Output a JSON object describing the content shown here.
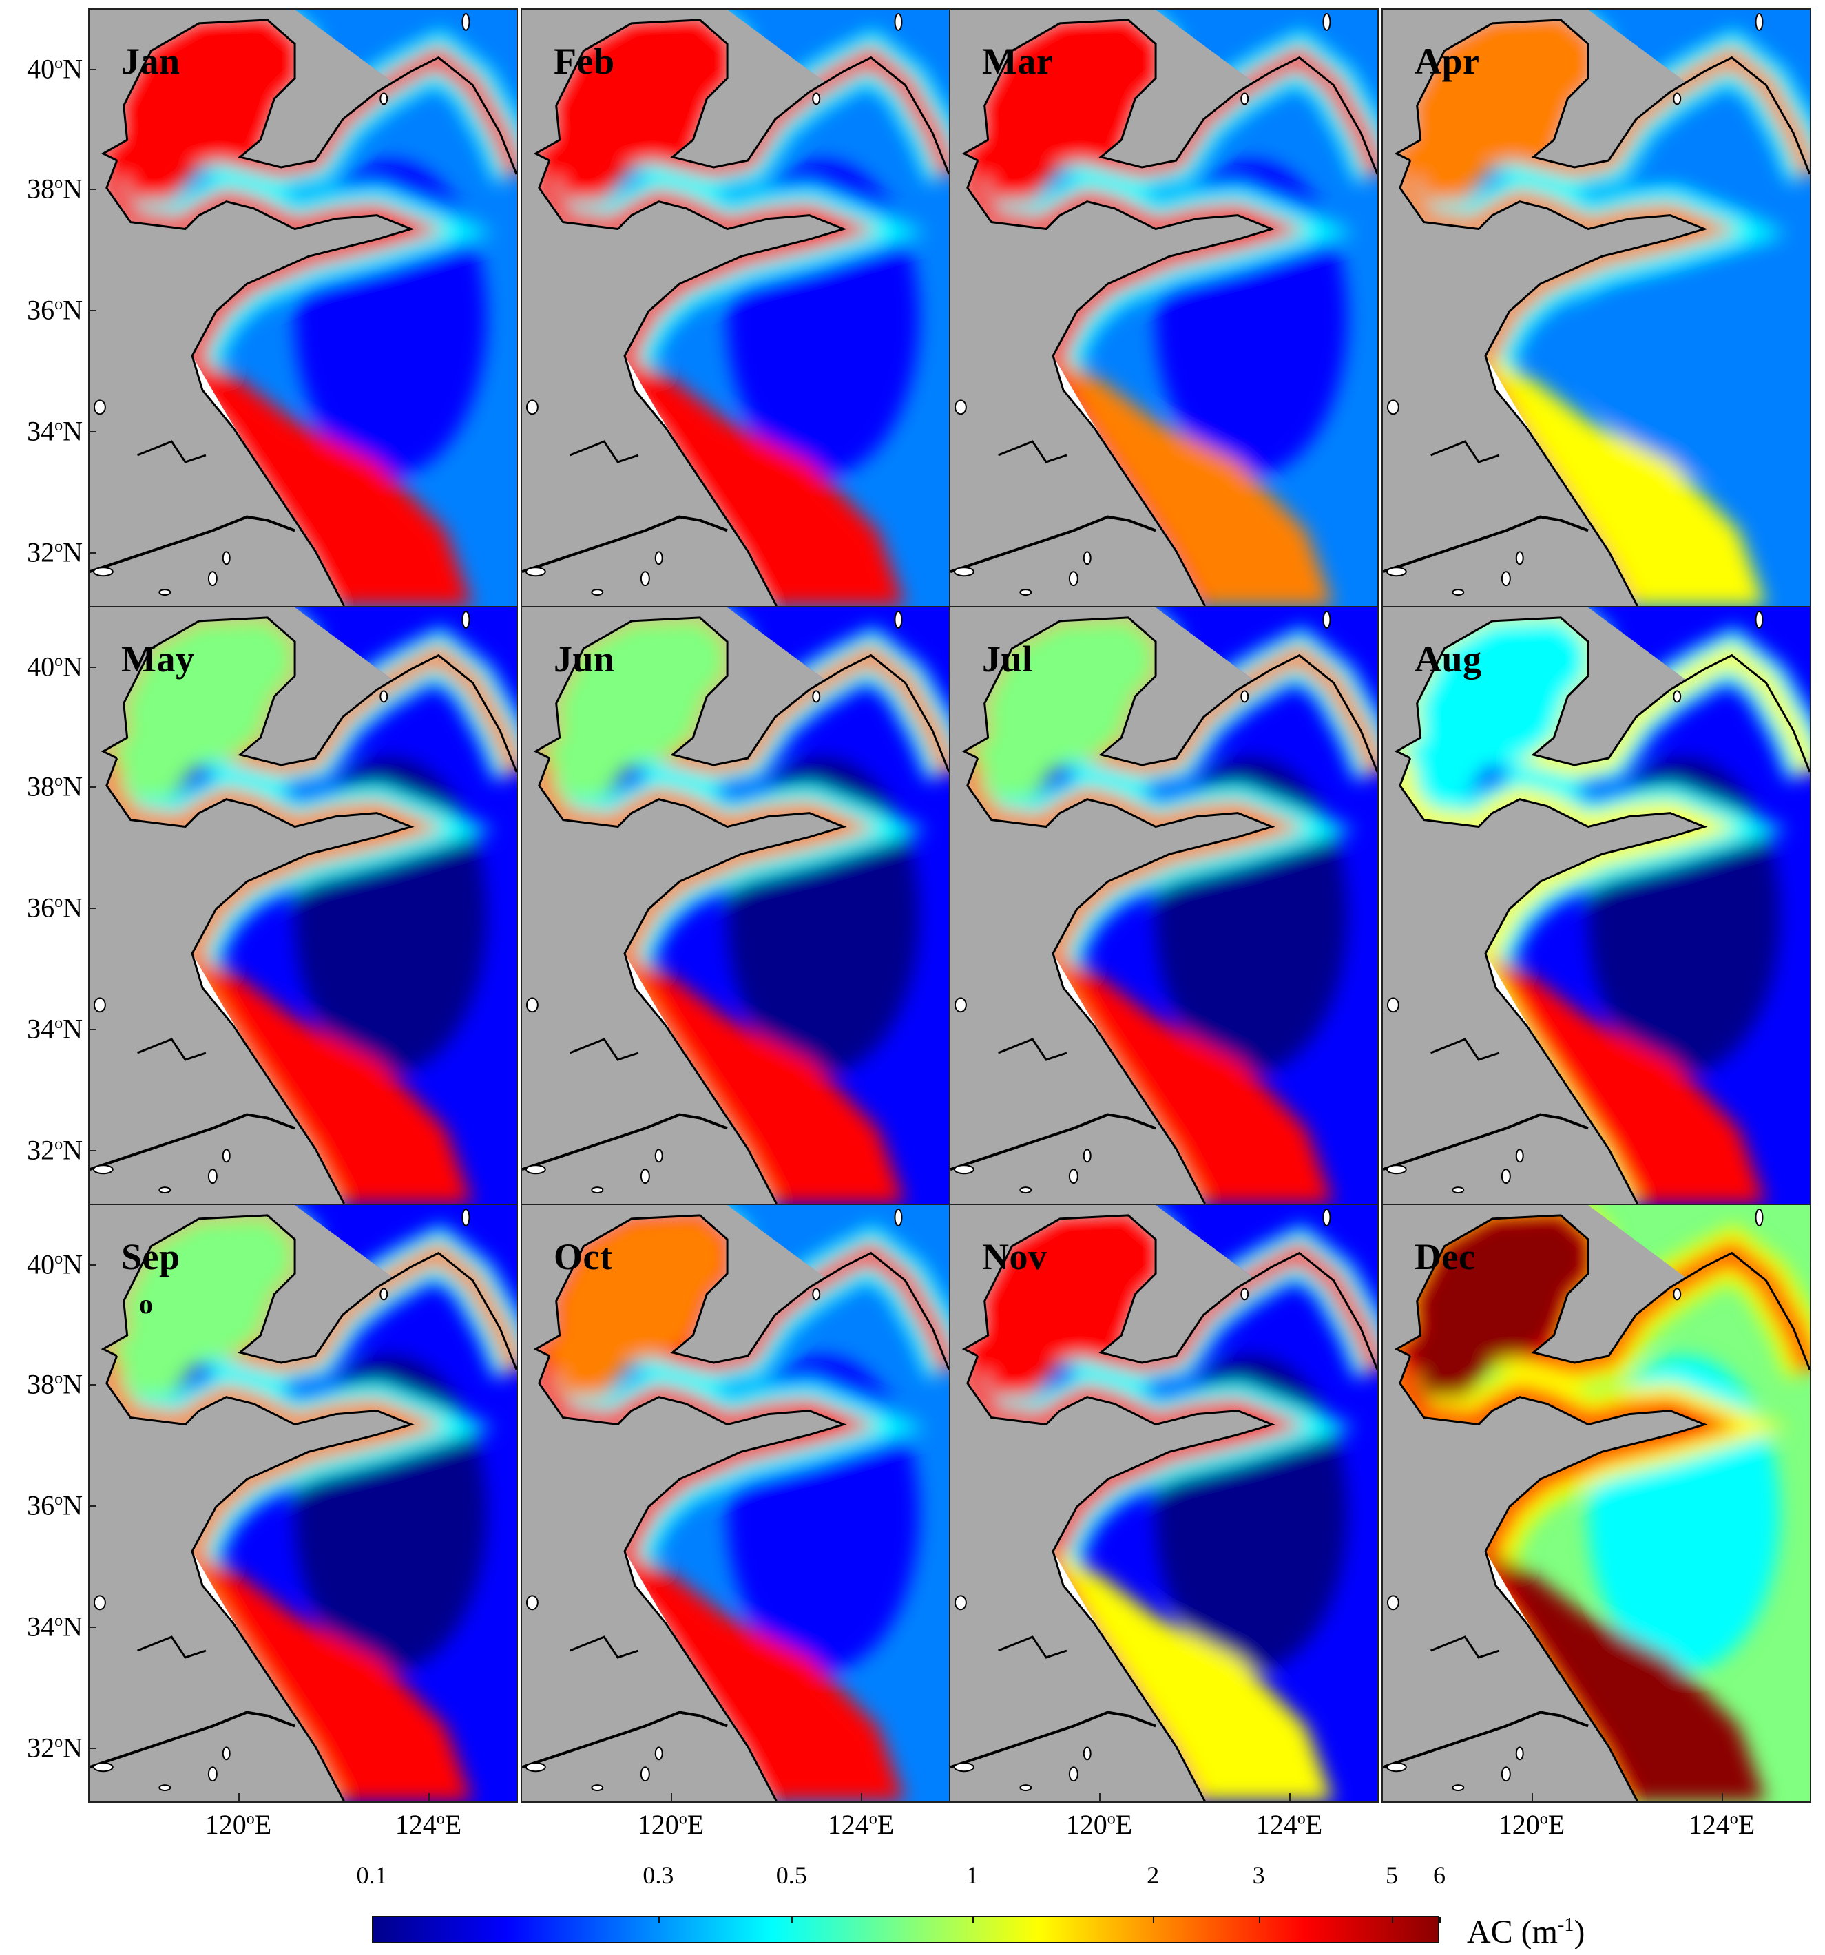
{
  "panels": [
    {
      "month": "Jan",
      "profile": "winter_high"
    },
    {
      "month": "Feb",
      "profile": "winter_high"
    },
    {
      "month": "Mar",
      "profile": "spring"
    },
    {
      "month": "Apr",
      "profile": "spring_low"
    },
    {
      "month": "May",
      "profile": "summer"
    },
    {
      "month": "Jun",
      "profile": "summer"
    },
    {
      "month": "Jul",
      "profile": "summer"
    },
    {
      "month": "Aug",
      "profile": "summer_low"
    },
    {
      "month": "Sep",
      "profile": "summer"
    },
    {
      "month": "Oct",
      "profile": "autumn"
    },
    {
      "month": "Nov",
      "profile": "autumn_gaps"
    },
    {
      "month": "Dec",
      "profile": "winter_max"
    }
  ],
  "axes": {
    "lat_labels": [
      "40",
      "38",
      "36",
      "34",
      "32"
    ],
    "lat_suffix": "N",
    "lon_labels": [
      "120",
      "124"
    ],
    "lon_suffix": "E",
    "degree_symbol": "o",
    "stray_label": "o"
  },
  "colorbar": {
    "label": "AC (m",
    "label_exp": "-1",
    "label_close": ")",
    "scale": "log",
    "range": [
      0.1,
      6
    ],
    "ticks": [
      "0.1",
      "0.3",
      "0.5",
      "1",
      "2",
      "3",
      "5",
      "6"
    ],
    "colormap": "jet",
    "colors": [
      "#00008b",
      "#0000ff",
      "#0080ff",
      "#00ffff",
      "#80ff80",
      "#ffff00",
      "#ff8000",
      "#ff0000",
      "#8b0000"
    ]
  },
  "map_colors": {
    "land": "#a9a9a9",
    "no_data": "#ffffff",
    "coastline": "#000000"
  }
}
